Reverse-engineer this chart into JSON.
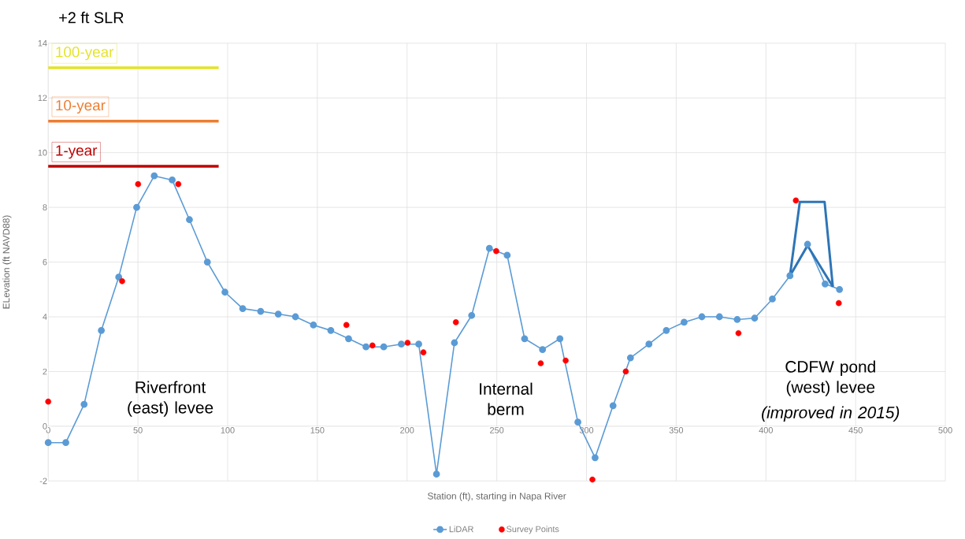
{
  "chart_data": {
    "type": "line",
    "title": "+2 ft SLR",
    "xlabel": "Station (ft), starting in Napa River",
    "ylabel": "ELevation (ft NAVD88)",
    "xlim": [
      0,
      500
    ],
    "ylim": [
      -2,
      14
    ],
    "xticks": [
      0,
      50,
      100,
      150,
      200,
      250,
      300,
      350,
      400,
      450,
      500
    ],
    "yticks": [
      -2,
      0,
      2,
      4,
      6,
      8,
      10,
      12,
      14
    ],
    "grid": true,
    "legend": "bottom",
    "marker": "circle",
    "series": [
      {
        "name": "LiDAR",
        "color": "#5b9bd5",
        "x": [
          0,
          9.8,
          20,
          29.6,
          39.3,
          49.3,
          59.1,
          69.1,
          78.7,
          88.7,
          98.5,
          108.4,
          118.4,
          128.2,
          137.8,
          147.8,
          157.5,
          167.4,
          177.1,
          187,
          196.8,
          206.5,
          216.4,
          226.4,
          236,
          245.9,
          255.8,
          265.5,
          275.5,
          285.2,
          295.2,
          304.8,
          314.8,
          324.5,
          334.8,
          344.5,
          354.4,
          364.3,
          374.1,
          384,
          393.7,
          403.6,
          413.4,
          423.2,
          433,
          441
        ],
        "values": [
          -0.6,
          -0.6,
          0.8,
          3.5,
          5.45,
          8.0,
          9.15,
          9.0,
          7.55,
          6.0,
          4.9,
          4.3,
          4.2,
          4.1,
          4.0,
          3.7,
          3.5,
          3.2,
          2.9,
          2.9,
          3.0,
          3.0,
          -1.75,
          3.05,
          4.05,
          6.5,
          6.25,
          3.2,
          2.8,
          3.2,
          0.15,
          -1.15,
          0.75,
          2.5,
          3.0,
          3.5,
          3.8,
          4.0,
          4.0,
          3.9,
          3.95,
          4.65,
          5.5,
          6.65,
          5.2,
          5.0
        ]
      },
      {
        "name": "Survey Points",
        "type": "scatter",
        "color": "#ff0000",
        "x": [
          0,
          41.2,
          50.1,
          72.5,
          166.2,
          180.7,
          200.3,
          209.1,
          227.2,
          249.7,
          274.5,
          288.4,
          303.3,
          321.9,
          384.7,
          416.7,
          440.6
        ],
        "values": [
          0.9,
          5.3,
          8.85,
          8.85,
          3.7,
          2.95,
          3.05,
          2.7,
          3.8,
          6.4,
          2.3,
          2.4,
          -1.95,
          2.0,
          3.4,
          8.25,
          4.5
        ]
      },
      {
        "type": "line",
        "color": "#2e75b6",
        "marker": "none",
        "x": [
          413.4,
          418.9,
          432.7,
          437.3
        ],
        "values": [
          5.5,
          8.2,
          8.2,
          5.1
        ]
      },
      {
        "type": "line",
        "color": "#2e75b6",
        "marker": "none",
        "x": [
          413.4,
          423.2,
          437.3
        ],
        "values": [
          5.5,
          6.6,
          5.1
        ]
      }
    ],
    "ref_lines": [
      {
        "axis": "y",
        "value": 13.1,
        "label": "100-year",
        "color": "#e3e32b"
      },
      {
        "axis": "y",
        "value": 11.15,
        "label": "10-year",
        "color": "#ed7d31"
      },
      {
        "axis": "y",
        "value": 9.5,
        "label": "1-year",
        "color": "#c00000"
      }
    ],
    "annotations": [
      "Riverfront (east) levee",
      "Internal berm",
      "CDFW pond (west) levee",
      "(improved in 2015)"
    ]
  }
}
